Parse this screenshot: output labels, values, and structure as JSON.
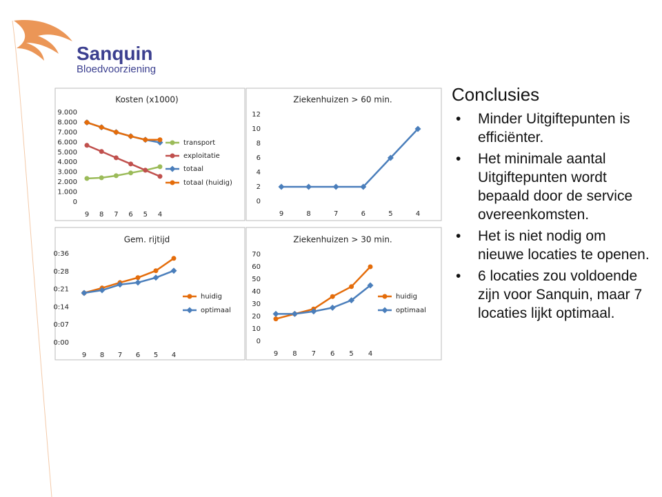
{
  "logo": {
    "name": "Sanquin",
    "subtitle": "Bloedvoorziening"
  },
  "chart_data": [
    {
      "type": "line",
      "title": "Kosten (x1000)",
      "categories": [
        "9",
        "8",
        "7",
        "6",
        "5",
        "4"
      ],
      "ylim": [
        0,
        9000
      ],
      "yticks": [
        {
          "value": 0,
          "label": "0"
        },
        {
          "value": 1000,
          "label": "1.000"
        },
        {
          "value": 2000,
          "label": "2.000"
        },
        {
          "value": 3000,
          "label": "3.000"
        },
        {
          "value": 4000,
          "label": "4.000"
        },
        {
          "value": 5000,
          "label": "5.000"
        },
        {
          "value": 6000,
          "label": "6.000"
        },
        {
          "value": 7000,
          "label": "7.000"
        },
        {
          "value": 8000,
          "label": "8.000"
        },
        {
          "value": 9000,
          "label": "9.000"
        }
      ],
      "series": [
        {
          "name": "transport",
          "color": "#9bbb59",
          "marker": "circle",
          "values": [
            2360,
            2430,
            2640,
            2920,
            3190,
            3540
          ]
        },
        {
          "name": "exploitatie",
          "color": "#c0504d",
          "marker": "circle",
          "values": [
            5690,
            5070,
            4440,
            3820,
            3190,
            2570
          ]
        },
        {
          "name": "totaal",
          "color": "#4a7ebb",
          "marker": "diamond",
          "values": [
            7990,
            7500,
            7010,
            6600,
            6250,
            5970
          ]
        },
        {
          "name": "totaal (huidig)",
          "color": "#e46c0a",
          "marker": "circle",
          "values": [
            7990,
            7500,
            7010,
            6600,
            6250,
            6250
          ]
        }
      ]
    },
    {
      "type": "line",
      "title": "Gem. rijtijd",
      "categories": [
        "9",
        "8",
        "7",
        "6",
        "5",
        "4"
      ],
      "ylim": [
        0,
        36
      ],
      "yticks": [
        {
          "value": 0,
          "label": "0:00"
        },
        {
          "value": 7.2,
          "label": "0:07"
        },
        {
          "value": 14.4,
          "label": "0:14"
        },
        {
          "value": 21.6,
          "label": "0:21"
        },
        {
          "value": 28.8,
          "label": "0:28"
        },
        {
          "value": 36,
          "label": "0:36"
        }
      ],
      "series": [
        {
          "name": "huidig",
          "color": "#e46c0a",
          "marker": "circle",
          "values": [
            20.1,
            22.1,
            24.3,
            26.3,
            29.1,
            34.1
          ]
        },
        {
          "name": "optimaal",
          "color": "#4a7ebb",
          "marker": "diamond",
          "values": [
            20.1,
            21.2,
            23.5,
            24.3,
            26.3,
            29.1
          ]
        }
      ]
    },
    {
      "type": "line",
      "title": "Ziekenhuizen > 60 min.",
      "categories": [
        "9",
        "8",
        "7",
        "6",
        "5",
        "4"
      ],
      "ylim": [
        0,
        12
      ],
      "yticks": [
        0,
        2,
        4,
        6,
        8,
        10,
        12
      ],
      "series": [
        {
          "color": "#4a7ebb",
          "marker": "diamond",
          "values": [
            2,
            2,
            2,
            2,
            6,
            10
          ]
        }
      ]
    },
    {
      "type": "line",
      "title": "Ziekenhuizen > 30 min.",
      "categories": [
        "9",
        "8",
        "7",
        "6",
        "5",
        "4"
      ],
      "ylim": [
        0,
        70
      ],
      "yticks": [
        0,
        10,
        20,
        30,
        40,
        50,
        60,
        70
      ],
      "series": [
        {
          "name": "huidig",
          "color": "#e46c0a",
          "marker": "circle",
          "values": [
            18,
            22,
            26,
            36,
            44,
            60
          ]
        },
        {
          "name": "optimaal",
          "color": "#4a7ebb",
          "marker": "diamond",
          "values": [
            22,
            22,
            24,
            27,
            33,
            45
          ]
        }
      ]
    }
  ],
  "conclusions": {
    "title": "Conclusies",
    "items": [
      "Minder Uitgiftepunten is efficiënter.",
      "Het minimale aantal Uitgiftepunten wordt bepaald door de service overeenkomsten.",
      "Het is niet nodig om nieuwe locaties te openen.",
      "6 locaties zou voldoende zijn voor Sanquin, maar 7 locaties lijkt optimaal."
    ]
  }
}
